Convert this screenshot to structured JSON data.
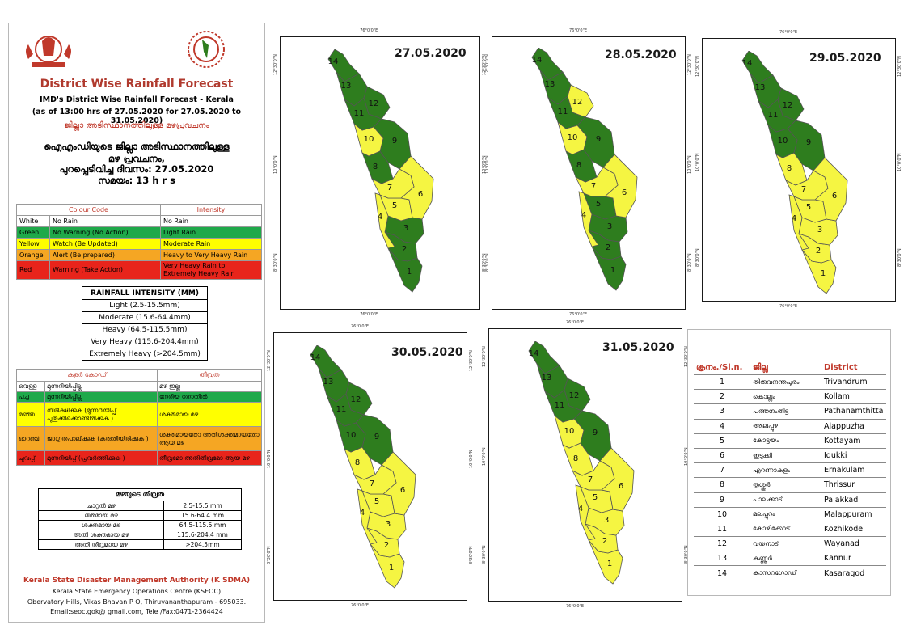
{
  "header": {
    "title": "District Wise Rainfall Forecast",
    "subtitle": "IMD's District Wise Rainfall Forecast - Kerala",
    "as_of": "(as of 13:00 hrs of 27.05.2020  for 27.05.2020  to 31.05.2020)",
    "ml_title": "ജില്ലാ അടിസ്ഥാനത്തിലുള്ള മഴപ്രവചനം",
    "ml_line1": "ഐഎംഡിയുടെ ജില്ലാ  അടിസ്ഥാനത്തിലുള്ള",
    "ml_line2": "മഴ പ്രവചനം,",
    "ml_line3": "പുറപ്പെടിവിച്ച  ദിവസം: 27.05.2020",
    "ml_line4": "സമയം: 13 h r s"
  },
  "colour_table": {
    "col_header": "Colour Code",
    "int_header": "Intensity",
    "rows": [
      {
        "colour": "White",
        "code": "No Rain",
        "intensity": "No Rain",
        "bg": "#ffffff"
      },
      {
        "colour": "Green",
        "code": "No Warning (No Action)",
        "intensity": "Light Rain",
        "bg": "#1fa94a"
      },
      {
        "colour": "Yellow",
        "code": "Watch (Be Updated)",
        "intensity": "Moderate Rain",
        "bg": "#ffff00"
      },
      {
        "colour": "Orange",
        "code": "Alert (Be prepared)",
        "intensity": "Heavy to Very Heavy Rain",
        "bg": "#f5a623"
      },
      {
        "colour": "Red",
        "code": "Warning (Take Action)",
        "intensity": "Very Heavy Rain to Extremely Heavy Rain",
        "bg": "#e8241b"
      }
    ]
  },
  "rainfall_intensity": {
    "header": "RAINFALL INTENSITY (MM)",
    "rows": [
      "Light (2.5-15.5mm)",
      "Moderate (15.6-64.4mm)",
      "Heavy (64.5-115.5mm)",
      "Very Heavy (115.6-204.4mm)",
      "Extremely Heavy (>204.5mm)"
    ]
  },
  "ml_colour_table": {
    "col_header": "കളർ കോഡ്",
    "int_header": "തീവ്രത",
    "rows": [
      {
        "colour": "വെള്ള",
        "code": "മുന്നറിയിപ്പില്ല",
        "intensity": "മഴ ഇല്ല",
        "bg": "#ffffff"
      },
      {
        "colour": "പച്ച",
        "code": "മുന്നറിയിപ്പില്ല",
        "intensity": "നേരിയ തോതിൽ",
        "bg": "#1fa94a"
      },
      {
        "colour": "മഞ്ഞ",
        "code": "നിരീക്ഷിക്കുക (മുന്നറിയിപ്പ് പുതുക്കിക്കൊണ്ടിരിക്കുക )",
        "intensity": "ശക്തമായ മഴ",
        "bg": "#ffff00"
      },
      {
        "colour": "ഓറഞ്ച്",
        "code": "ജാഗ്രതപാലിക്കുക (കരുതിയിരിക്കുക )",
        "intensity": "ശക്തമായതോ അതിശക്തമായതോ ആയ മഴ",
        "bg": "#f5a623"
      },
      {
        "colour": "ചുവപ്പ്",
        "code": "മുന്നറിയിപ്പ് (പ്രവർത്തിക്കുക )",
        "intensity": "തീവ്രമോ അതിതീവ്രമോ ആയ മഴ",
        "bg": "#e8241b"
      }
    ]
  },
  "ml_rain_table": {
    "header": "മഴയുടെ  തീവ്രത",
    "rows": [
      {
        "label": "ചാറ്റൽ  മഴ",
        "value": "2.5-15.5 mm"
      },
      {
        "label": "മിതമായ  മഴ",
        "value": "15.6-64.4 mm"
      },
      {
        "label": "ശക്തമായ  മഴ",
        "value": "64.5-115.5 mm"
      },
      {
        "label": "അതി ശക്തമായ  മഴ",
        "value": "115.6-204.4 mm"
      },
      {
        "label": "അതി തീവ്രമായ  മഴ",
        "value": ">204.5mm"
      }
    ]
  },
  "footer": {
    "org": "Kerala State Disaster Management Authority (K SDMA)",
    "centre": "Kerala State Emergency Operations Centre (KSEOC)",
    "address": "Obervatory Hills, Vikas Bhavan P O, Thiruvananthapuram - 695033.",
    "contact": "Email:seoc.gok@ gmail.com, Tele /Fax:0471-2364424"
  },
  "coords": {
    "top": "76°0'0\"E",
    "lat1": "12°30'0\"N",
    "lat2": "10°0'0\"N",
    "lat3": "8°30'0\"N"
  },
  "maps": [
    {
      "date": "27.05.2020",
      "colors": {
        "1": "green",
        "2": "green",
        "3": "green",
        "4": "yellow",
        "5": "yellow",
        "6": "yellow",
        "7": "yellow",
        "8": "green",
        "9": "green",
        "10": "yellow",
        "11": "green",
        "12": "green",
        "13": "green",
        "14": "green"
      }
    },
    {
      "date": "28.05.2020",
      "colors": {
        "1": "green",
        "2": "green",
        "3": "green",
        "4": "yellow",
        "5": "green",
        "6": "yellow",
        "7": "yellow",
        "8": "green",
        "9": "green",
        "10": "yellow",
        "11": "green",
        "12": "yellow",
        "13": "green",
        "14": "green"
      }
    },
    {
      "date": "29.05.2020",
      "colors": {
        "1": "yellow",
        "2": "yellow",
        "3": "yellow",
        "4": "yellow",
        "5": "yellow",
        "6": "yellow",
        "7": "yellow",
        "8": "yellow",
        "9": "green",
        "10": "green",
        "11": "green",
        "12": "green",
        "13": "green",
        "14": "green"
      }
    },
    {
      "date": "30.05.2020",
      "colors": {
        "1": "yellow",
        "2": "yellow",
        "3": "yellow",
        "4": "yellow",
        "5": "yellow",
        "6": "yellow",
        "7": "yellow",
        "8": "yellow",
        "9": "green",
        "10": "green",
        "11": "green",
        "12": "green",
        "13": "green",
        "14": "green"
      }
    },
    {
      "date": "31.05.2020",
      "colors": {
        "1": "yellow",
        "2": "yellow",
        "3": "yellow",
        "4": "yellow",
        "5": "yellow",
        "6": "yellow",
        "7": "yellow",
        "8": "yellow",
        "9": "green",
        "10": "yellow",
        "11": "green",
        "12": "green",
        "13": "green",
        "14": "green"
      }
    }
  ],
  "palette": {
    "green": "#2e7d1e",
    "yellow": "#f5f542",
    "border": "#555555"
  },
  "district_table": {
    "h_sl": "ക്രനം./Sl.n.",
    "h_ml": "ജില്ല",
    "h_en": "District",
    "rows": [
      {
        "sl": "1",
        "ml": "തിരുവനന്തപുരം",
        "en": "Trivandrum"
      },
      {
        "sl": "2",
        "ml": "കൊല്ലം",
        "en": "Kollam"
      },
      {
        "sl": "3",
        "ml": "പത്തനംതിട്ട",
        "en": "Pathanamthitta"
      },
      {
        "sl": "4",
        "ml": "ആലപ്പുഴ",
        "en": "Alappuzha"
      },
      {
        "sl": "5",
        "ml": "കോട്ടയം",
        "en": "Kottayam"
      },
      {
        "sl": "6",
        "ml": "ഇടുക്കി",
        "en": "Idukki"
      },
      {
        "sl": "7",
        "ml": "എറണാകുളം",
        "en": "Ernakulam"
      },
      {
        "sl": "8",
        "ml": "തൃശ്ശൂർ",
        "en": "Thrissur"
      },
      {
        "sl": "9",
        "ml": "പാലക്കാട്",
        "en": "Palakkad"
      },
      {
        "sl": "10",
        "ml": "മലപ്പുറം",
        "en": "Malappuram"
      },
      {
        "sl": "11",
        "ml": "കോഴിക്കോട്",
        "en": "Kozhikode"
      },
      {
        "sl": "12",
        "ml": "വയനാട്",
        "en": "Wayanad"
      },
      {
        "sl": "13",
        "ml": "കണ്ണൂർ",
        "en": "Kannur"
      },
      {
        "sl": "14",
        "ml": "കാസറഗോഡ്",
        "en": "Kasaragod"
      }
    ]
  }
}
